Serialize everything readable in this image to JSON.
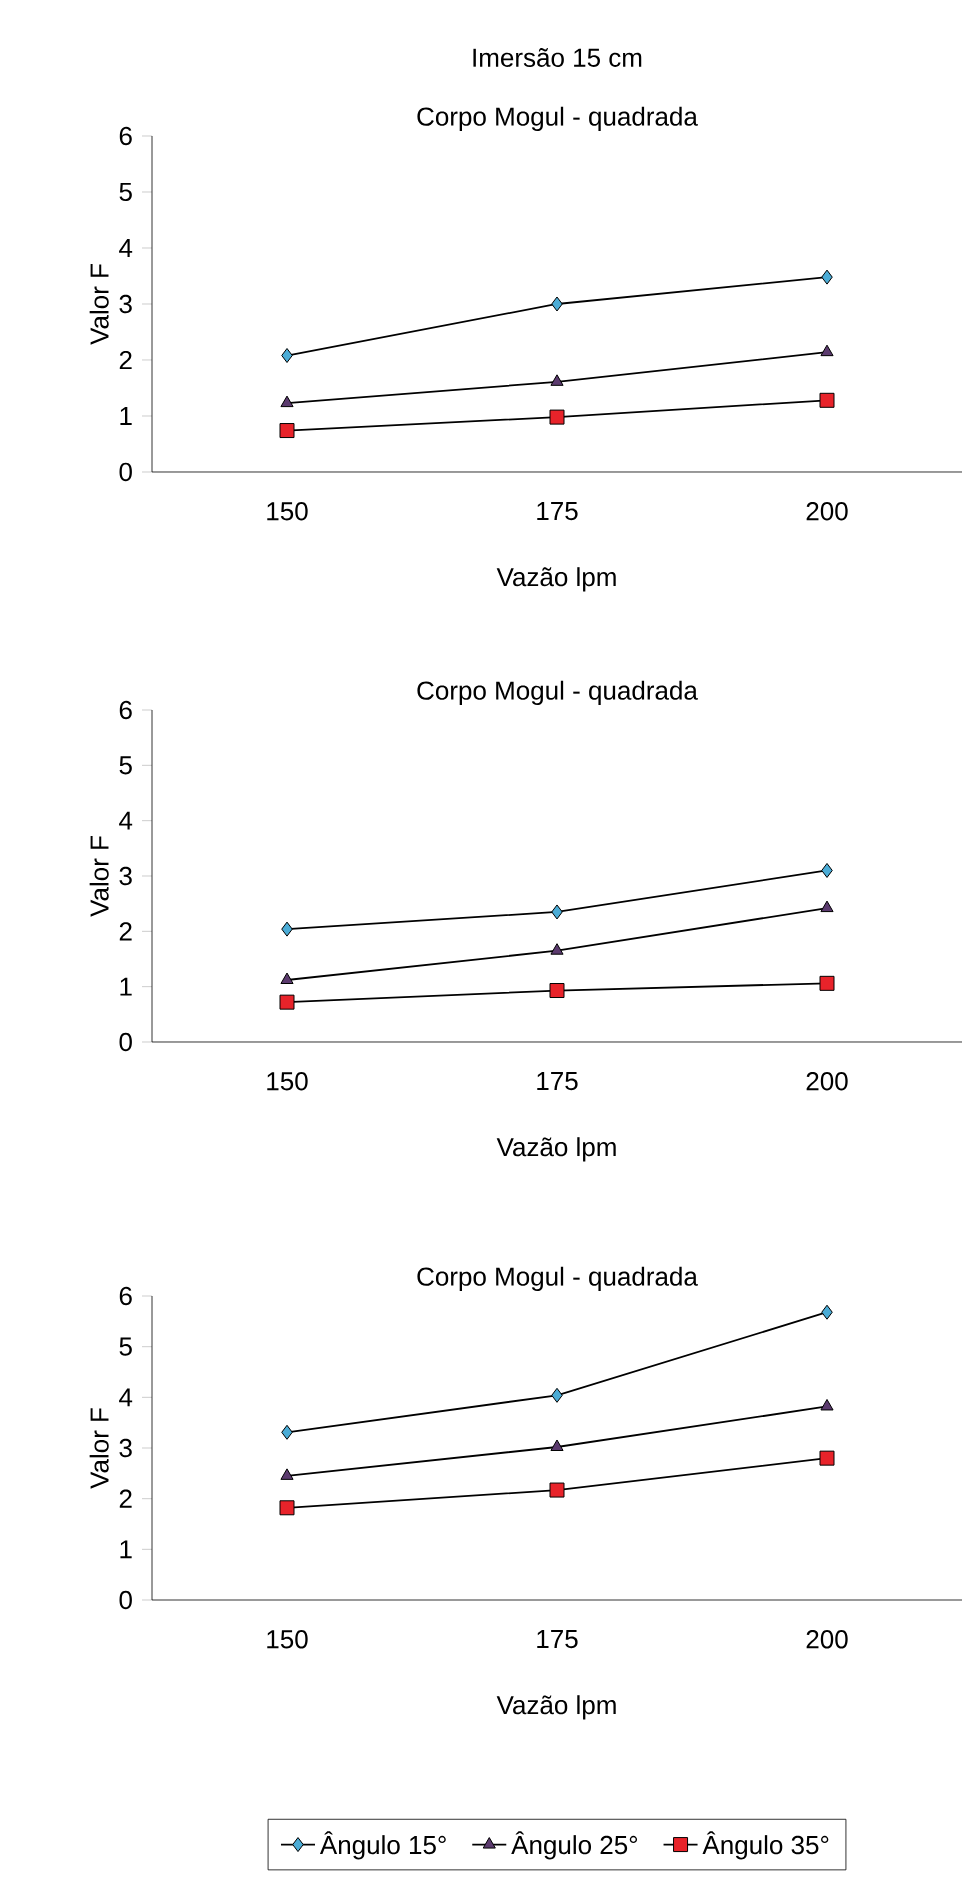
{
  "chart_data": [
    {
      "type": "line",
      "title": "Imersão 15 cm",
      "subtitle": "Corpo Mogul - quadrada",
      "xlabel": "Vazão lpm",
      "ylabel": "Valor F",
      "categories": [
        "150",
        "175",
        "200"
      ],
      "ylim": [
        0,
        6
      ],
      "yticks": [
        0,
        1,
        2,
        3,
        4,
        5,
        6
      ],
      "series": [
        {
          "color": "#4bacd6",
          "marker": "diamond",
          "values": [
            2.08,
            3.0,
            3.48
          ]
        },
        {
          "color": "#5b3a6e",
          "marker": "triangle",
          "values": [
            1.23,
            1.61,
            2.14
          ]
        },
        {
          "color": "#e8232a",
          "marker": "square",
          "values": [
            0.74,
            0.98,
            1.28
          ]
        }
      ]
    },
    {
      "type": "line",
      "title": "Corpo Mogul - quadrada",
      "xlabel": "Vazão lpm",
      "ylabel": "Valor F",
      "categories": [
        "150",
        "175",
        "200"
      ],
      "ylim": [
        0,
        6
      ],
      "yticks": [
        0,
        1,
        2,
        3,
        4,
        5,
        6
      ],
      "series": [
        {
          "color": "#4bacd6",
          "marker": "diamond",
          "values": [
            2.04,
            2.35,
            3.1
          ]
        },
        {
          "color": "#5b3a6e",
          "marker": "triangle",
          "values": [
            1.12,
            1.65,
            2.42
          ]
        },
        {
          "color": "#e8232a",
          "marker": "square",
          "values": [
            0.72,
            0.93,
            1.06
          ]
        }
      ]
    },
    {
      "type": "line",
      "title": "Corpo Mogul - quadrada",
      "xlabel": "Vazão lpm",
      "ylabel": "Valor F",
      "categories": [
        "150",
        "175",
        "200"
      ],
      "ylim": [
        0,
        6
      ],
      "yticks": [
        0,
        1,
        2,
        3,
        4,
        5,
        6
      ],
      "legend": "bottom",
      "series": [
        {
          "name": "Ângulo 15°",
          "color": "#4bacd6",
          "marker": "diamond",
          "values": [
            3.31,
            4.04,
            5.68
          ]
        },
        {
          "name": "Ângulo 25°",
          "color": "#5b3a6e",
          "marker": "triangle",
          "values": [
            2.45,
            3.02,
            3.82
          ]
        },
        {
          "name": "Ângulo 35°",
          "color": "#e8232a",
          "marker": "square",
          "values": [
            1.82,
            2.17,
            2.8
          ]
        }
      ]
    }
  ]
}
